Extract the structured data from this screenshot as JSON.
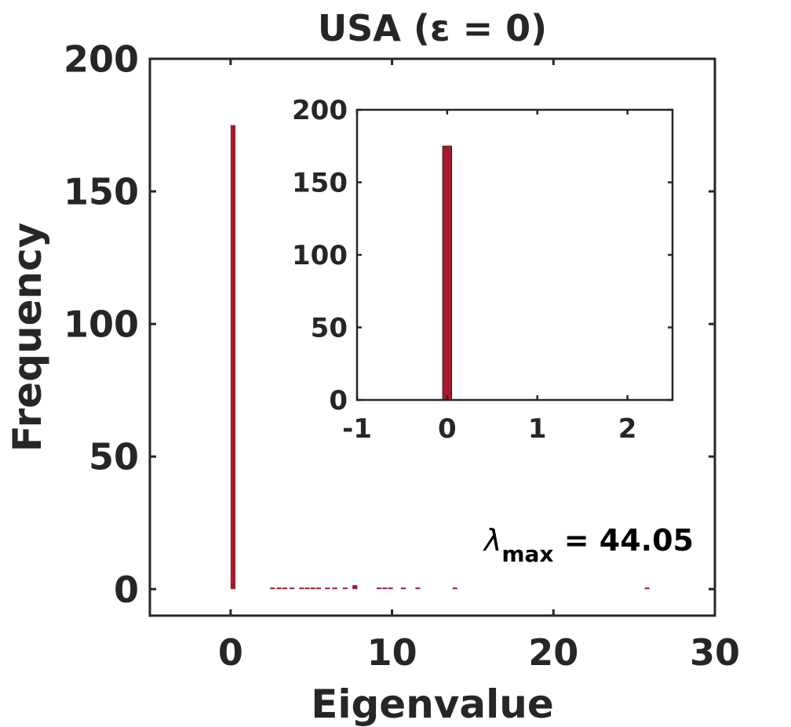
{
  "chart_data": [
    {
      "type": "bar",
      "title": "USA (ε = 0)",
      "xlabel": "Eigenvalue",
      "ylabel": "Frequency",
      "xlim": [
        -5,
        30
      ],
      "ylim": [
        -10,
        200
      ],
      "xticks": [
        0,
        10,
        20,
        30
      ],
      "yticks": [
        0,
        50,
        100,
        150,
        200
      ],
      "grid": false,
      "bin_width": 0.3,
      "bar_color": "#a6192e",
      "bins": [
        {
          "x": 0.15,
          "value": 175
        },
        {
          "x": 2.6,
          "value": 0.5
        },
        {
          "x": 3.0,
          "value": 0.5
        },
        {
          "x": 3.35,
          "value": 0.5
        },
        {
          "x": 3.8,
          "value": 0.5
        },
        {
          "x": 4.4,
          "value": 0.5
        },
        {
          "x": 4.75,
          "value": 0.5
        },
        {
          "x": 5.1,
          "value": 0.5
        },
        {
          "x": 5.45,
          "value": 0.5
        },
        {
          "x": 6.0,
          "value": 0.5
        },
        {
          "x": 6.45,
          "value": 0.5
        },
        {
          "x": 7.1,
          "value": 0.5
        },
        {
          "x": 7.7,
          "value": 1.5
        },
        {
          "x": 9.2,
          "value": 0.5
        },
        {
          "x": 9.55,
          "value": 0.5
        },
        {
          "x": 9.9,
          "value": 0.5
        },
        {
          "x": 10.7,
          "value": 0.5
        },
        {
          "x": 11.6,
          "value": 0.5
        },
        {
          "x": 13.9,
          "value": 0.5
        },
        {
          "x": 25.8,
          "value": 0.5
        }
      ],
      "annotation": {
        "symbol": "λ",
        "subscript": "max",
        "text": " = 44.05"
      }
    },
    {
      "type": "bar",
      "role": "inset",
      "xlim": [
        -1,
        2.5
      ],
      "ylim": [
        0,
        200
      ],
      "xticks": [
        -1,
        0,
        1,
        2
      ],
      "yticks": [
        0,
        50,
        100,
        150,
        200
      ],
      "grid": false,
      "bin_width": 0.1,
      "bar_color": "#a6192e",
      "bins": [
        {
          "x": 0.0,
          "value": 175
        }
      ]
    }
  ]
}
